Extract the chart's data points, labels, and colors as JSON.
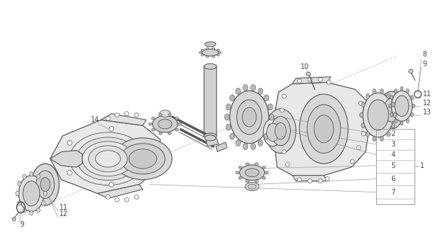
{
  "bg_color": "#ffffff",
  "lc": "#999999",
  "dc": "#555555",
  "fc_light": "#e8e8e8",
  "fc_mid": "#d0d0d0",
  "fc_dark": "#b8b8b8",
  "label_color": "#444444",
  "fig_width": 6.18,
  "fig_height": 3.4,
  "dpi": 100
}
